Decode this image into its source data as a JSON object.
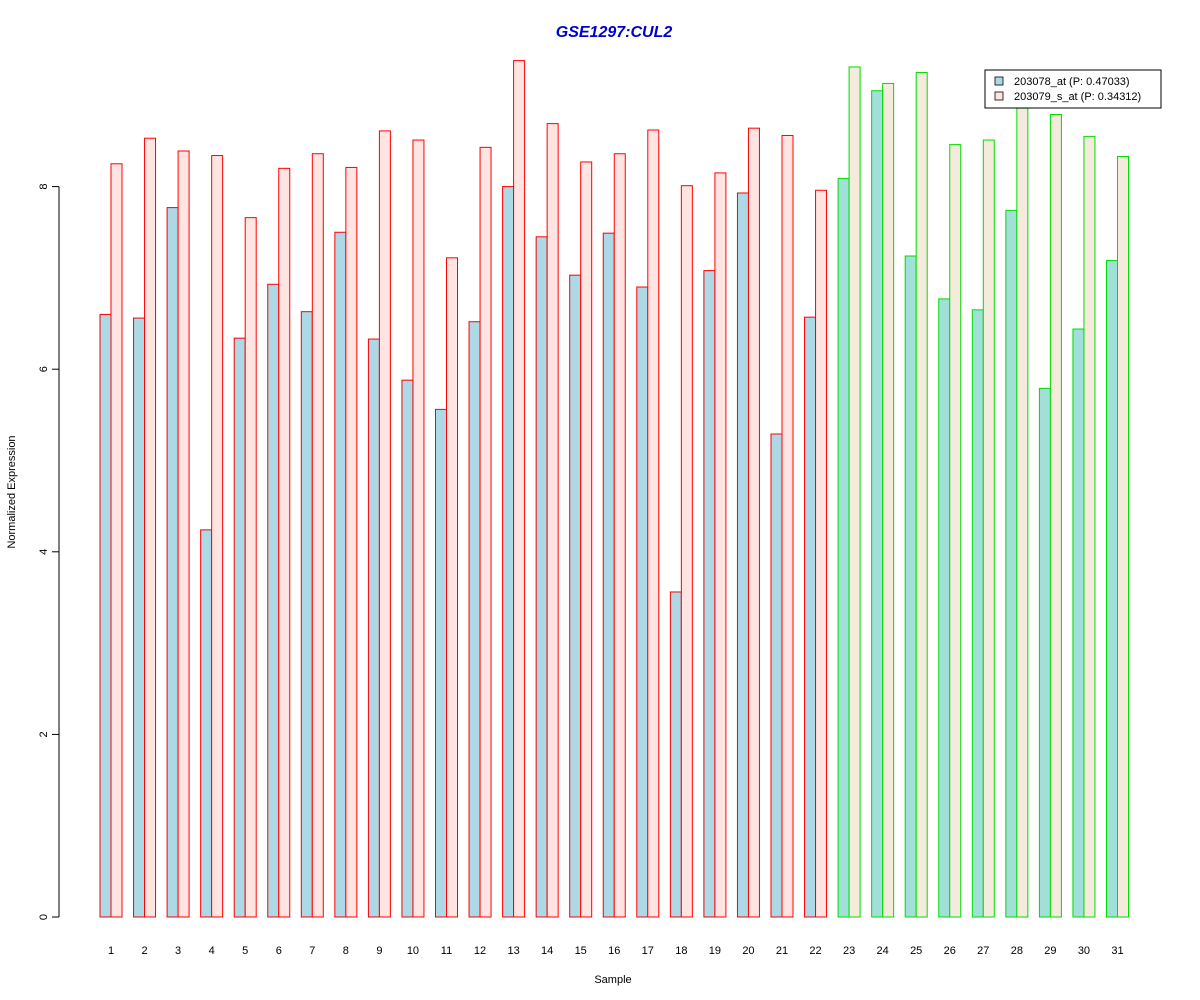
{
  "chart_data": {
    "type": "bar",
    "title": "GSE1297:CUL2",
    "xlabel": "Sample",
    "ylabel": "Normalized Expression",
    "ylim": [
      0,
      9.4
    ],
    "y_ticks": [
      "0",
      "2",
      "4",
      "6",
      "8"
    ],
    "categories": [
      "1",
      "2",
      "3",
      "4",
      "5",
      "6",
      "7",
      "8",
      "9",
      "10",
      "11",
      "12",
      "13",
      "14",
      "15",
      "16",
      "17",
      "18",
      "19",
      "20",
      "21",
      "22",
      "23",
      "24",
      "25",
      "26",
      "27",
      "28",
      "29",
      "30",
      "31"
    ],
    "series": [
      {
        "name": "203078_at (P: 0.47033)",
        "values": [
          6.6,
          6.56,
          7.77,
          4.24,
          6.34,
          6.93,
          6.63,
          7.5,
          6.33,
          5.88,
          5.56,
          6.52,
          8.0,
          7.45,
          7.03,
          7.49,
          6.9,
          3.56,
          7.08,
          7.93,
          5.29,
          6.57,
          8.09,
          9.05,
          7.24,
          6.77,
          6.65,
          7.74,
          5.79,
          6.44,
          7.19
        ]
      },
      {
        "name": "203079_s_at (P: 0.34312)",
        "values": [
          8.25,
          8.53,
          8.39,
          8.34,
          7.66,
          8.2,
          8.36,
          8.21,
          8.61,
          8.51,
          7.22,
          8.43,
          9.38,
          8.69,
          8.27,
          8.36,
          8.62,
          8.01,
          8.15,
          8.64,
          8.56,
          7.96,
          9.31,
          9.13,
          9.25,
          8.46,
          8.51,
          8.86,
          8.79,
          8.55,
          8.33
        ]
      }
    ],
    "group_border_colors": {
      "group1": "#ff0000",
      "group2": "#00dd00"
    },
    "group1_samples": 22,
    "fill_colors": {
      "series1_group1": "#add8e6",
      "series2_group1": "#ffe4e1",
      "series1_group2": "#a0e0d8",
      "series2_group2": "#f5ebdc"
    },
    "legend_position": "top-right",
    "grid": false,
    "title_color": "#0000cc"
  }
}
